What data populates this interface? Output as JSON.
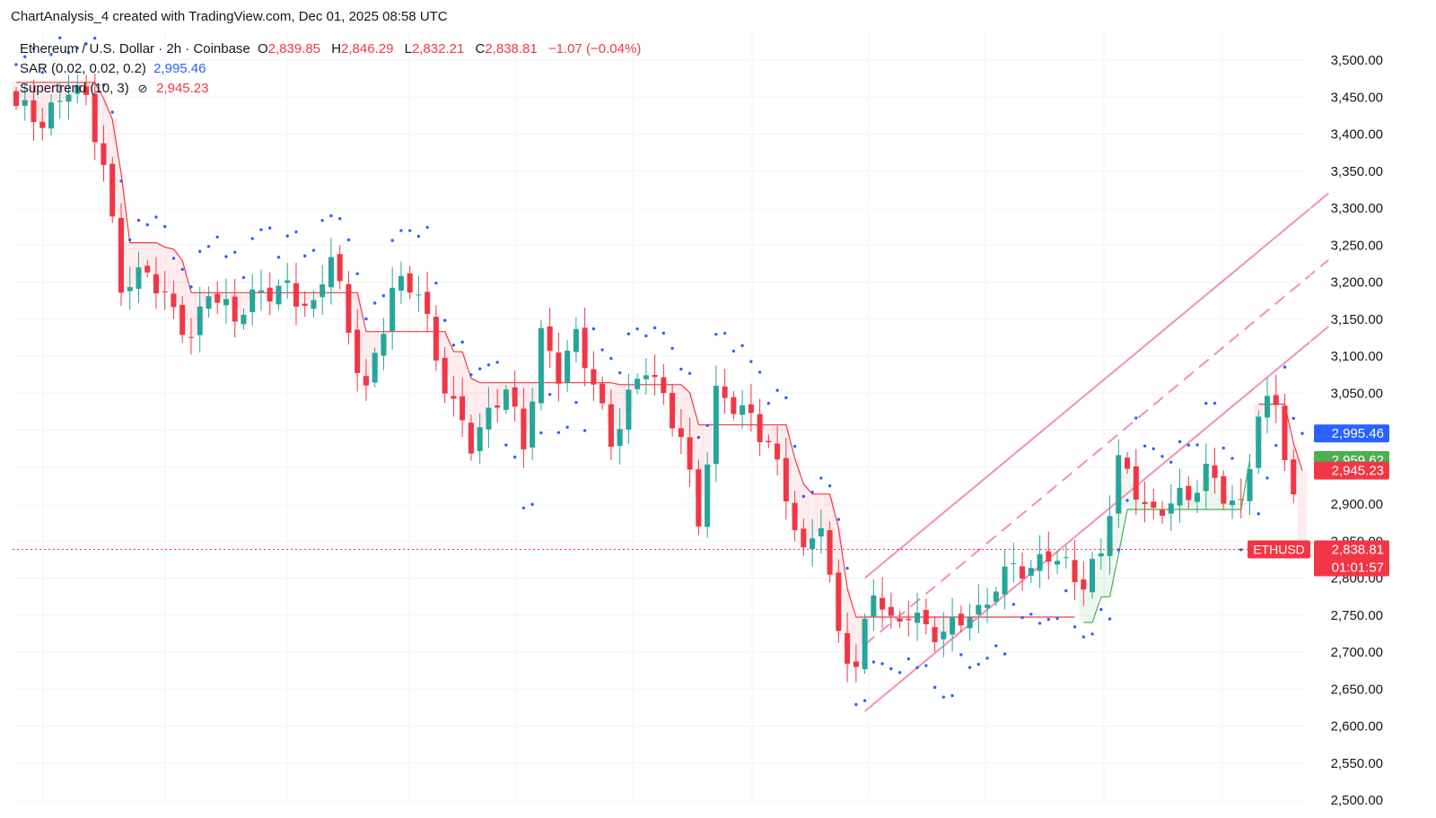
{
  "watermark": "ChartAnalysis_4 created with TradingView.com, Dec 01, 2025 08:58 UTC",
  "legend": {
    "symbol": "Ethereum / U.S. Dollar · 2h · Coinbase",
    "o_label": "O",
    "o_value": "2,839.85",
    "h_label": "H",
    "h_value": "2,846.29",
    "l_label": "L",
    "l_value": "2,832.21",
    "c_label": "C",
    "c_value": "2,838.81",
    "change": "−1.07 (−0.04%)",
    "sar_label": "SAR (0.02, 0.02, 0.2)",
    "sar_value": "2,995.46",
    "st_label": "Supertrend (10, 3)",
    "st_icon": "eye-off-icon",
    "st_value": "2,945.23"
  },
  "tags": {
    "sar": "2,995.46",
    "supertrend_up": "2,959.62",
    "supertrend_down": "2,945.23",
    "symbol": "ETHUSD",
    "price": "2,838.81",
    "countdown": "01:01:57"
  },
  "colors": {
    "up": "#26a69a",
    "down": "#f23645",
    "sar": "#2962ff",
    "st_down": "#f23645",
    "st_up": "#4caf50",
    "channel": "#f48fb1",
    "tag_green": "#4caf50",
    "tag_blue": "#2962ff",
    "tag_red": "#f23645"
  },
  "chart_data": {
    "type": "candlestick",
    "symbol": "Ethereum / U.S. Dollar",
    "interval": "2h",
    "y_axis": {
      "ticks": [
        "3,500.00",
        "3,450.00",
        "3,400.00",
        "3,350.00",
        "3,300.00",
        "3,250.00",
        "3,200.00",
        "3,150.00",
        "3,100.00",
        "3,050.00",
        "3,000.00",
        "2,950.00",
        "2,900.00",
        "2,850.00",
        "2,800.00",
        "2,750.00",
        "2,700.00",
        "2,650.00",
        "2,600.00",
        "2,550.00",
        "2,500.00"
      ],
      "ylim": [
        2500,
        3540
      ]
    },
    "grid": true,
    "candle_count": 148,
    "anchors": [
      [
        0,
        3430
      ],
      [
        3,
        3420
      ],
      [
        6,
        3470
      ],
      [
        8,
        3440
      ],
      [
        10,
        3350
      ],
      [
        12,
        3200
      ],
      [
        15,
        3220
      ],
      [
        17,
        3170
      ],
      [
        20,
        3120
      ],
      [
        22,
        3200
      ],
      [
        25,
        3150
      ],
      [
        28,
        3180
      ],
      [
        31,
        3200
      ],
      [
        34,
        3160
      ],
      [
        36,
        3235
      ],
      [
        38,
        3130
      ],
      [
        40,
        3060
      ],
      [
        43,
        3190
      ],
      [
        46,
        3185
      ],
      [
        48,
        3100
      ],
      [
        50,
        3040
      ],
      [
        52,
        2980
      ],
      [
        54,
        3010
      ],
      [
        56,
        3060
      ],
      [
        58,
        2985
      ],
      [
        60,
        3130
      ],
      [
        62,
        3070
      ],
      [
        64,
        3120
      ],
      [
        66,
        3070
      ],
      [
        68,
        2990
      ],
      [
        70,
        3040
      ],
      [
        72,
        3080
      ],
      [
        74,
        3040
      ],
      [
        76,
        3000
      ],
      [
        78,
        2880
      ],
      [
        80,
        3040
      ],
      [
        82,
        3030
      ],
      [
        84,
        3020
      ],
      [
        86,
        2990
      ],
      [
        88,
        2910
      ],
      [
        90,
        2820
      ],
      [
        92,
        2880
      ],
      [
        93,
        2800
      ],
      [
        94,
        2730
      ],
      [
        96,
        2680
      ],
      [
        98,
        2780
      ],
      [
        100,
        2730
      ],
      [
        102,
        2760
      ],
      [
        104,
        2740
      ],
      [
        106,
        2720
      ],
      [
        108,
        2740
      ],
      [
        110,
        2750
      ],
      [
        112,
        2800
      ],
      [
        114,
        2820
      ],
      [
        116,
        2800
      ],
      [
        118,
        2830
      ],
      [
        120,
        2820
      ],
      [
        122,
        2800
      ],
      [
        124,
        2830
      ],
      [
        126,
        2950
      ],
      [
        128,
        2920
      ],
      [
        130,
        2890
      ],
      [
        132,
        2910
      ],
      [
        134,
        2900
      ],
      [
        136,
        2940
      ],
      [
        138,
        2920
      ],
      [
        140,
        2900
      ],
      [
        142,
        3020
      ],
      [
        144,
        3030
      ],
      [
        147,
        2839
      ]
    ],
    "candles": [],
    "parabolic_sar": {
      "params": [
        0.02,
        0.02,
        0.2
      ],
      "last": 2995.46
    },
    "supertrend": {
      "params": [
        10,
        3
      ],
      "last_down": 2945.23,
      "last_up": 2959.62
    },
    "current_price": 2838.81,
    "ohlc_last": {
      "open": 2839.85,
      "high": 2846.29,
      "low": 2832.21,
      "close": 2838.81
    },
    "channel": {
      "upper_start": [
        97,
        2800
      ],
      "upper_end": [
        150,
        3320
      ],
      "lower_start": [
        97,
        2620
      ],
      "lower_end": [
        150,
        3140
      ],
      "mid_start": [
        97,
        2710
      ],
      "mid_end": [
        150,
        3230
      ]
    },
    "series_text": [
      "SAR (0.02, 0.02, 0.2)",
      "Supertrend (10, 3)"
    ]
  }
}
